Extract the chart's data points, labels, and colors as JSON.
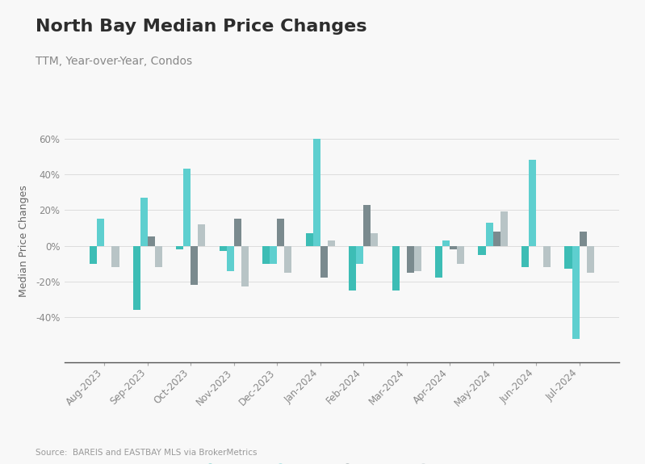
{
  "title": "North Bay Median Price Changes",
  "subtitle": "TTM, Year-over-Year, Condos",
  "source": "Source:  BAREIS and EASTBAY MLS via BrokerMetrics",
  "ylabel": "Median Price Changes",
  "months": [
    "Aug-2023",
    "Sep-2023",
    "Oct-2023",
    "Nov-2023",
    "Dec-2023",
    "Jan-2024",
    "Feb-2024",
    "Mar-2024",
    "Apr-2024",
    "May-2024",
    "Jun-2024",
    "Jul-2024"
  ],
  "series": {
    "Marin": [
      -0.1,
      -0.36,
      -0.02,
      -0.03,
      -0.1,
      0.07,
      -0.25,
      -0.25,
      -0.18,
      -0.05,
      -0.12,
      -0.13
    ],
    "Napa": [
      0.15,
      0.27,
      0.43,
      -0.14,
      -0.1,
      0.6,
      -0.1,
      0.0,
      0.03,
      0.13,
      0.48,
      -0.52
    ],
    "Solano": [
      0.0,
      0.05,
      -0.22,
      0.15,
      0.15,
      -0.18,
      0.23,
      -0.15,
      -0.02,
      0.08,
      0.0,
      0.08
    ],
    "Sonoma": [
      -0.12,
      -0.12,
      0.12,
      -0.23,
      -0.15,
      0.03,
      0.07,
      -0.14,
      -0.1,
      0.19,
      -0.12,
      -0.15
    ]
  },
  "colors": {
    "Marin": "#3dbdb5",
    "Napa": "#5ecfcf",
    "Solano": "#7a8a8e",
    "Sonoma": "#b8c4c6"
  },
  "ylim": [
    -0.65,
    0.7
  ],
  "yticks": [
    -0.4,
    -0.2,
    0.0,
    0.2,
    0.4,
    0.6
  ],
  "background_color": "#f8f8f8",
  "bar_width": 0.17,
  "title_fontsize": 16,
  "subtitle_fontsize": 10,
  "tick_fontsize": 8.5,
  "ylabel_fontsize": 9,
  "legend_fontsize": 10,
  "source_fontsize": 7.5
}
